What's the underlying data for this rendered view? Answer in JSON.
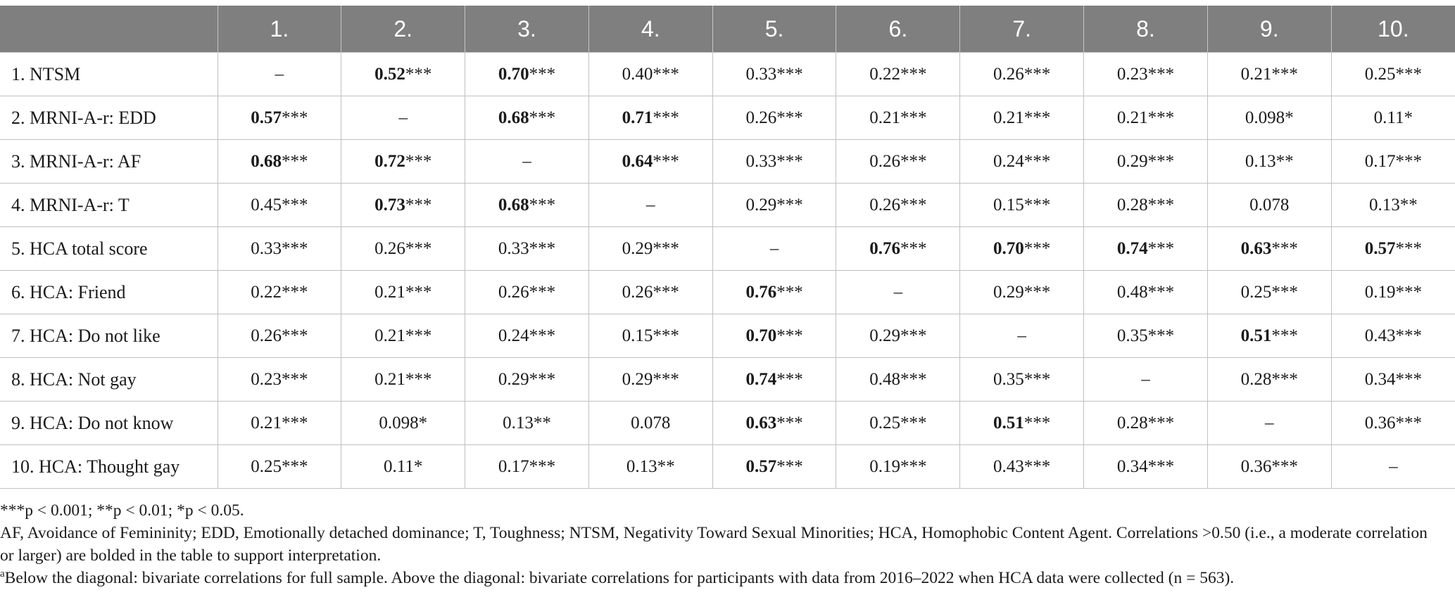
{
  "table": {
    "corner": "",
    "columns": [
      "1.",
      "2.",
      "3.",
      "4.",
      "5.",
      "6.",
      "7.",
      "8.",
      "9.",
      "10."
    ],
    "rows": [
      {
        "label": "1.  NTSM",
        "cells": [
          [
            "–",
            ""
          ],
          [
            "0.52",
            "***"
          ],
          [
            "0.70",
            "***"
          ],
          [
            "0.40***",
            ""
          ],
          [
            "0.33***",
            ""
          ],
          [
            "0.22***",
            ""
          ],
          [
            "0.26***",
            ""
          ],
          [
            "0.23***",
            ""
          ],
          [
            "0.21***",
            ""
          ],
          [
            "0.25***",
            ""
          ]
        ]
      },
      {
        "label": "2.  MRNI-A-r: EDD",
        "cells": [
          [
            "0.57",
            "***"
          ],
          [
            "–",
            ""
          ],
          [
            "0.68",
            "***"
          ],
          [
            "0.71",
            "***"
          ],
          [
            "0.26***",
            ""
          ],
          [
            "0.21***",
            ""
          ],
          [
            "0.21***",
            ""
          ],
          [
            "0.21***",
            ""
          ],
          [
            "0.098*",
            ""
          ],
          [
            "0.11*",
            ""
          ]
        ]
      },
      {
        "label": "3.  MRNI-A-r: AF",
        "cells": [
          [
            "0.68",
            "***"
          ],
          [
            "0.72",
            "***"
          ],
          [
            "–",
            ""
          ],
          [
            "0.64",
            "***"
          ],
          [
            "0.33***",
            ""
          ],
          [
            "0.26***",
            ""
          ],
          [
            "0.24***",
            ""
          ],
          [
            "0.29***",
            ""
          ],
          [
            "0.13**",
            ""
          ],
          [
            "0.17***",
            ""
          ]
        ]
      },
      {
        "label": "4.  MRNI-A-r: T",
        "cells": [
          [
            "0.45***",
            ""
          ],
          [
            "0.73",
            "***"
          ],
          [
            "0.68",
            "***"
          ],
          [
            "–",
            ""
          ],
          [
            "0.29***",
            ""
          ],
          [
            "0.26***",
            ""
          ],
          [
            "0.15***",
            ""
          ],
          [
            "0.28***",
            ""
          ],
          [
            "0.078",
            ""
          ],
          [
            "0.13**",
            ""
          ]
        ]
      },
      {
        "label": "5.  HCA total score",
        "cells": [
          [
            "0.33***",
            ""
          ],
          [
            "0.26***",
            ""
          ],
          [
            "0.33***",
            ""
          ],
          [
            "0.29***",
            ""
          ],
          [
            "–",
            ""
          ],
          [
            "0.76",
            "***"
          ],
          [
            "0.70",
            "***"
          ],
          [
            "0.74",
            "***"
          ],
          [
            "0.63",
            "***"
          ],
          [
            "0.57",
            "***"
          ]
        ]
      },
      {
        "label": "6.  HCA: Friend",
        "cells": [
          [
            "0.22***",
            ""
          ],
          [
            "0.21***",
            ""
          ],
          [
            "0.26***",
            ""
          ],
          [
            "0.26***",
            ""
          ],
          [
            "0.76",
            "***"
          ],
          [
            "–",
            ""
          ],
          [
            "0.29***",
            ""
          ],
          [
            "0.48***",
            ""
          ],
          [
            "0.25***",
            ""
          ],
          [
            "0.19***",
            ""
          ]
        ]
      },
      {
        "label": "7.  HCA: Do not like",
        "cells": [
          [
            "0.26***",
            ""
          ],
          [
            "0.21***",
            ""
          ],
          [
            "0.24***",
            ""
          ],
          [
            "0.15***",
            ""
          ],
          [
            "0.70",
            "***"
          ],
          [
            "0.29***",
            ""
          ],
          [
            "–",
            ""
          ],
          [
            "0.35***",
            ""
          ],
          [
            "0.51",
            "***"
          ],
          [
            "0.43***",
            ""
          ]
        ]
      },
      {
        "label": "8.  HCA: Not gay",
        "cells": [
          [
            "0.23***",
            ""
          ],
          [
            "0.21***",
            ""
          ],
          [
            "0.29***",
            ""
          ],
          [
            "0.29***",
            ""
          ],
          [
            "0.74",
            "***"
          ],
          [
            "0.48***",
            ""
          ],
          [
            "0.35***",
            ""
          ],
          [
            "–",
            ""
          ],
          [
            "0.28***",
            ""
          ],
          [
            "0.34***",
            ""
          ]
        ]
      },
      {
        "label": "9.  HCA: Do not know",
        "cells": [
          [
            "0.21***",
            ""
          ],
          [
            "0.098*",
            ""
          ],
          [
            "0.13**",
            ""
          ],
          [
            "0.078",
            ""
          ],
          [
            "0.63",
            "***"
          ],
          [
            "0.25***",
            ""
          ],
          [
            "0.51",
            "***"
          ],
          [
            "0.28***",
            ""
          ],
          [
            "–",
            ""
          ],
          [
            "0.36***",
            ""
          ]
        ]
      },
      {
        "label": "10.  HCA: Thought gay",
        "cells": [
          [
            "0.25***",
            ""
          ],
          [
            "0.11*",
            ""
          ],
          [
            "0.17***",
            ""
          ],
          [
            "0.13**",
            ""
          ],
          [
            "0.57",
            "***"
          ],
          [
            "0.19***",
            ""
          ],
          [
            "0.43***",
            ""
          ],
          [
            "0.34***",
            ""
          ],
          [
            "0.36***",
            ""
          ],
          [
            "–",
            ""
          ]
        ]
      }
    ]
  },
  "notes": {
    "significance": "***p < 0.001; **p < 0.01; *p < 0.05.",
    "abbreviations": "AF, Avoidance of Femininity; EDD, Emotionally detached dominance; T, Toughness; NTSM, Negativity Toward Sexual Minorities; HCA, Homophobic Content Agent. Correlations >0.50 (i.e., a moderate correlation or larger) are bolded in the table to support interpretation.",
    "footnote_marker": "a",
    "footnote": "Below the diagonal: bivariate correlations for full sample. Above the diagonal: bivariate correlations for participants with data from 2016–2022 when HCA data were collected (n = 563)."
  }
}
